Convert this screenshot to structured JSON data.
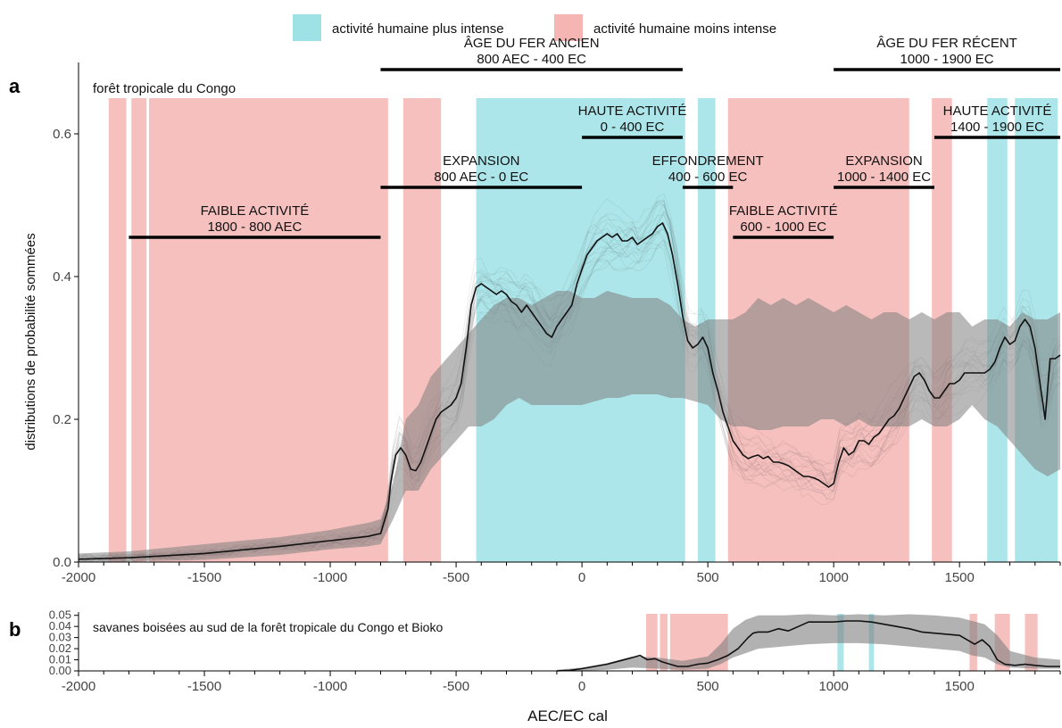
{
  "legend": {
    "high_label": "activité humaine plus intense",
    "low_label": "activité humaine moins intense",
    "placement": "top-center"
  },
  "colors": {
    "high": "#9fe2e6",
    "low": "#f5b5b3",
    "band": "#7f7f7f",
    "line": "#111111",
    "axis": "#000000"
  },
  "chart_data": [
    {
      "panel_label": "a",
      "type": "line",
      "title": "forêt tropicale du Congo",
      "ylabel": "distributions de probabilité sommées",
      "xlabel": "",
      "xlim": [
        -2000,
        1900
      ],
      "ylim": [
        0,
        0.7
      ],
      "xticks": [
        -2000,
        -1500,
        -1000,
        -500,
        0,
        500,
        1000,
        1500
      ],
      "xtick_labels": [
        "-2000",
        "-1500",
        "-1000",
        "-500",
        "0",
        "500",
        "1000",
        "1500"
      ],
      "yticks": [
        0.0,
        0.2,
        0.4,
        0.6
      ],
      "ytick_labels": [
        "0.0",
        "0.2",
        "0.4",
        "0.6"
      ],
      "grid": false,
      "median": {
        "x": [
          -2000,
          -1800,
          -1500,
          -1200,
          -1000,
          -850,
          -800,
          -770,
          -760,
          -740,
          -720,
          -700,
          -680,
          -660,
          -640,
          -620,
          -600,
          -580,
          -560,
          -540,
          -520,
          -500,
          -480,
          -460,
          -440,
          -420,
          -400,
          -380,
          -360,
          -340,
          -320,
          -300,
          -280,
          -260,
          -240,
          -220,
          -200,
          -180,
          -160,
          -140,
          -120,
          -100,
          -80,
          -60,
          -40,
          -20,
          0,
          20,
          40,
          60,
          80,
          100,
          120,
          140,
          160,
          180,
          200,
          220,
          240,
          260,
          280,
          300,
          320,
          340,
          360,
          380,
          400,
          420,
          440,
          460,
          480,
          500,
          520,
          540,
          560,
          580,
          600,
          620,
          640,
          660,
          680,
          700,
          720,
          740,
          760,
          780,
          800,
          820,
          840,
          860,
          880,
          900,
          920,
          940,
          960,
          980,
          1000,
          1020,
          1040,
          1060,
          1080,
          1100,
          1120,
          1140,
          1160,
          1180,
          1200,
          1220,
          1240,
          1260,
          1280,
          1300,
          1320,
          1340,
          1360,
          1380,
          1400,
          1420,
          1440,
          1460,
          1480,
          1500,
          1520,
          1540,
          1560,
          1580,
          1600,
          1620,
          1640,
          1660,
          1680,
          1700,
          1720,
          1740,
          1760,
          1780,
          1800,
          1820,
          1840,
          1860,
          1880,
          1900
        ],
        "y": [
          0.004,
          0.006,
          0.012,
          0.022,
          0.03,
          0.036,
          0.04,
          0.075,
          0.11,
          0.15,
          0.16,
          0.15,
          0.13,
          0.128,
          0.14,
          0.16,
          0.18,
          0.2,
          0.21,
          0.215,
          0.22,
          0.23,
          0.25,
          0.3,
          0.36,
          0.385,
          0.39,
          0.385,
          0.38,
          0.375,
          0.38,
          0.375,
          0.365,
          0.36,
          0.35,
          0.36,
          0.35,
          0.34,
          0.33,
          0.32,
          0.315,
          0.33,
          0.34,
          0.35,
          0.36,
          0.39,
          0.41,
          0.43,
          0.44,
          0.45,
          0.455,
          0.46,
          0.455,
          0.46,
          0.45,
          0.45,
          0.455,
          0.445,
          0.45,
          0.455,
          0.46,
          0.47,
          0.475,
          0.46,
          0.43,
          0.39,
          0.345,
          0.31,
          0.3,
          0.305,
          0.315,
          0.3,
          0.265,
          0.24,
          0.21,
          0.19,
          0.17,
          0.16,
          0.15,
          0.145,
          0.148,
          0.15,
          0.145,
          0.148,
          0.14,
          0.14,
          0.138,
          0.135,
          0.13,
          0.125,
          0.12,
          0.12,
          0.118,
          0.115,
          0.11,
          0.105,
          0.11,
          0.14,
          0.16,
          0.15,
          0.155,
          0.17,
          0.17,
          0.165,
          0.175,
          0.18,
          0.19,
          0.2,
          0.205,
          0.215,
          0.23,
          0.245,
          0.26,
          0.265,
          0.255,
          0.24,
          0.23,
          0.23,
          0.24,
          0.25,
          0.25,
          0.255,
          0.265,
          0.265,
          0.265,
          0.265,
          0.265,
          0.27,
          0.28,
          0.3,
          0.315,
          0.305,
          0.31,
          0.33,
          0.34,
          0.33,
          0.3,
          0.25,
          0.2,
          0.285,
          0.285,
          0.29
        ]
      },
      "envelope": {
        "x": [
          -2000,
          -1800,
          -1500,
          -1200,
          -1000,
          -850,
          -800,
          -750,
          -700,
          -650,
          -600,
          -550,
          -500,
          -450,
          -400,
          -350,
          -300,
          -250,
          -200,
          -150,
          -100,
          -50,
          0,
          50,
          100,
          150,
          200,
          250,
          300,
          350,
          400,
          450,
          500,
          550,
          600,
          650,
          700,
          750,
          800,
          850,
          900,
          950,
          1000,
          1050,
          1100,
          1150,
          1200,
          1250,
          1300,
          1350,
          1400,
          1450,
          1500,
          1550,
          1600,
          1650,
          1700,
          1750,
          1800,
          1850,
          1900
        ],
        "lower": [
          0.0,
          0.001,
          0.003,
          0.01,
          0.018,
          0.022,
          0.025,
          0.06,
          0.1,
          0.1,
          0.13,
          0.15,
          0.17,
          0.19,
          0.19,
          0.2,
          0.22,
          0.23,
          0.22,
          0.22,
          0.22,
          0.22,
          0.22,
          0.225,
          0.23,
          0.23,
          0.235,
          0.235,
          0.235,
          0.23,
          0.23,
          0.225,
          0.22,
          0.2,
          0.19,
          0.19,
          0.185,
          0.185,
          0.19,
          0.19,
          0.19,
          0.2,
          0.2,
          0.19,
          0.2,
          0.19,
          0.19,
          0.19,
          0.19,
          0.2,
          0.19,
          0.19,
          0.2,
          0.22,
          0.2,
          0.19,
          0.17,
          0.15,
          0.13,
          0.12,
          0.13
        ],
        "upper": [
          0.012,
          0.015,
          0.025,
          0.035,
          0.045,
          0.055,
          0.06,
          0.11,
          0.2,
          0.22,
          0.26,
          0.28,
          0.3,
          0.32,
          0.34,
          0.36,
          0.37,
          0.37,
          0.36,
          0.37,
          0.38,
          0.38,
          0.37,
          0.37,
          0.38,
          0.375,
          0.37,
          0.37,
          0.37,
          0.36,
          0.34,
          0.33,
          0.34,
          0.34,
          0.34,
          0.35,
          0.37,
          0.36,
          0.37,
          0.36,
          0.37,
          0.36,
          0.35,
          0.36,
          0.35,
          0.34,
          0.35,
          0.35,
          0.34,
          0.35,
          0.34,
          0.35,
          0.35,
          0.33,
          0.34,
          0.34,
          0.33,
          0.35,
          0.34,
          0.34,
          0.35
        ]
      },
      "spans": [
        {
          "kind": "low",
          "start": -1880,
          "end": -1810
        },
        {
          "kind": "low",
          "start": -1790,
          "end": -1730
        },
        {
          "kind": "low",
          "start": -1720,
          "end": -770
        },
        {
          "kind": "low",
          "start": -710,
          "end": -560
        },
        {
          "kind": "high",
          "start": -420,
          "end": 410
        },
        {
          "kind": "high",
          "start": 460,
          "end": 530
        },
        {
          "kind": "low",
          "start": 580,
          "end": 1300
        },
        {
          "kind": "low",
          "start": 1390,
          "end": 1470
        },
        {
          "kind": "high",
          "start": 1610,
          "end": 1690
        },
        {
          "kind": "high",
          "start": 1720,
          "end": 1890
        }
      ],
      "periods": [
        {
          "line1": "ÂGE DU FER ANCIEN",
          "line2": "800 AEC - 400 EC",
          "start": -800,
          "end": 400,
          "y": 0.69
        },
        {
          "line1": "ÂGE DU FER RÉCENT",
          "line2": "1000 - 1900 EC",
          "start": 1000,
          "end": 1900,
          "y": 0.69
        },
        {
          "line1": "HAUTE ACTIVITÉ",
          "line2": "0 - 400 EC",
          "start": 0,
          "end": 400,
          "y": 0.595
        },
        {
          "line1": "HAUTE ACTIVITÉ",
          "line2": "1400 - 1900 EC",
          "start": 1400,
          "end": 1900,
          "y": 0.595
        },
        {
          "line1": "EXPANSION",
          "line2": "800 AEC - 0 EC",
          "start": -800,
          "end": 0,
          "y": 0.525
        },
        {
          "line1": "EFFONDREMENT",
          "line2": "400 - 600 EC",
          "start": 400,
          "end": 600,
          "y": 0.525
        },
        {
          "line1": "EXPANSION",
          "line2": "1000 - 1400 EC",
          "start": 1000,
          "end": 1400,
          "y": 0.525
        },
        {
          "line1": "FAIBLE ACTIVITÉ",
          "line2": "600 - 1000 EC",
          "start": 600,
          "end": 1000,
          "y": 0.455
        },
        {
          "line1": "FAIBLE ACTIVITÉ",
          "line2": "1800 - 800 AEC",
          "start": -1800,
          "end": -800,
          "y": 0.455
        }
      ]
    },
    {
      "panel_label": "b",
      "type": "line",
      "title": "savanes boisées au sud de la forêt tropicale du Congo et Bioko",
      "ylabel": "",
      "xlabel": "AEC/EC cal",
      "xlim": [
        -2000,
        1900
      ],
      "ylim": [
        0,
        0.053
      ],
      "xticks": [
        -2000,
        -1500,
        -1000,
        -500,
        0,
        500,
        1000,
        1500
      ],
      "xtick_labels": [
        "-2000",
        "-1500",
        "-1000",
        "-500",
        "0",
        "500",
        "1000",
        "1500"
      ],
      "yticks": [
        0.0,
        0.01,
        0.02,
        0.03,
        0.04,
        0.05
      ],
      "ytick_labels": [
        "0.00",
        "0.01",
        "0.02",
        "0.03",
        "0.04",
        "0.05"
      ],
      "grid": false,
      "median": {
        "x": [
          -100,
          -50,
          0,
          50,
          100,
          150,
          200,
          230,
          260,
          290,
          320,
          350,
          380,
          420,
          460,
          500,
          540,
          580,
          620,
          660,
          680,
          700,
          740,
          780,
          820,
          860,
          900,
          950,
          1000,
          1050,
          1100,
          1150,
          1200,
          1250,
          1300,
          1350,
          1400,
          1450,
          1500,
          1530,
          1560,
          1590,
          1620,
          1650,
          1680,
          1720,
          1760,
          1800,
          1850,
          1900
        ],
        "y": [
          0.0,
          0.0005,
          0.002,
          0.004,
          0.006,
          0.009,
          0.012,
          0.014,
          0.01,
          0.011,
          0.008,
          0.006,
          0.004,
          0.004,
          0.006,
          0.007,
          0.01,
          0.014,
          0.02,
          0.03,
          0.034,
          0.035,
          0.035,
          0.038,
          0.036,
          0.04,
          0.044,
          0.044,
          0.044,
          0.045,
          0.045,
          0.044,
          0.042,
          0.04,
          0.038,
          0.035,
          0.034,
          0.033,
          0.032,
          0.028,
          0.024,
          0.028,
          0.022,
          0.01,
          0.006,
          0.005,
          0.006,
          0.005,
          0.004,
          0.004
        ]
      },
      "envelope": {
        "x": [
          -100,
          0,
          100,
          200,
          300,
          400,
          500,
          550,
          600,
          650,
          700,
          800,
          900,
          1000,
          1100,
          1200,
          1300,
          1400,
          1500,
          1550,
          1600,
          1650,
          1700,
          1800,
          1900
        ],
        "lower": [
          0.0,
          0.0,
          0.001,
          0.003,
          0.002,
          0.001,
          0.002,
          0.006,
          0.012,
          0.016,
          0.02,
          0.022,
          0.024,
          0.025,
          0.025,
          0.024,
          0.022,
          0.02,
          0.018,
          0.014,
          0.012,
          0.006,
          0.003,
          0.002,
          0.002
        ],
        "upper": [
          0.001,
          0.003,
          0.007,
          0.013,
          0.012,
          0.009,
          0.013,
          0.024,
          0.038,
          0.046,
          0.05,
          0.05,
          0.051,
          0.05,
          0.051,
          0.05,
          0.051,
          0.05,
          0.048,
          0.045,
          0.042,
          0.032,
          0.018,
          0.012,
          0.01
        ]
      },
      "spans": [
        {
          "kind": "low",
          "start": 255,
          "end": 300
        },
        {
          "kind": "low",
          "start": 310,
          "end": 340
        },
        {
          "kind": "low",
          "start": 350,
          "end": 580
        },
        {
          "kind": "high",
          "start": 1015,
          "end": 1040
        },
        {
          "kind": "high",
          "start": 1140,
          "end": 1160
        },
        {
          "kind": "low",
          "start": 1540,
          "end": 1570
        },
        {
          "kind": "low",
          "start": 1640,
          "end": 1700
        },
        {
          "kind": "low",
          "start": 1760,
          "end": 1810
        }
      ]
    }
  ]
}
